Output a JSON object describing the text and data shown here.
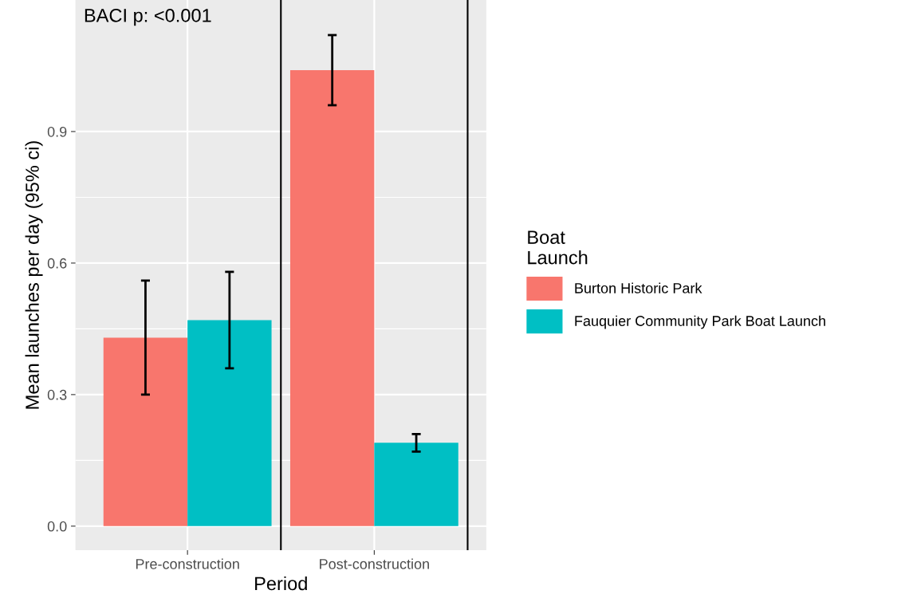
{
  "chart_data": {
    "type": "bar",
    "xlabel": "Period",
    "ylabel": "Mean launches per day (95% ci)",
    "legend_title": "Boat\nLaunch",
    "categories": [
      "Pre-construction",
      "Post-construction"
    ],
    "series": [
      {
        "name": "Burton Historic Park",
        "color": "#f8766d",
        "values": [
          0.43,
          1.04
        ],
        "errors": [
          [
            0.3,
            0.56
          ],
          [
            0.96,
            1.12
          ]
        ]
      },
      {
        "name": "Fauquier Community Park Boat Launch",
        "color": "#00bfc4",
        "values": [
          0.47,
          0.19
        ],
        "errors": [
          [
            0.36,
            0.58
          ],
          [
            0.17,
            0.21
          ]
        ]
      }
    ],
    "ylim": [
      -0.055,
      1.2
    ],
    "yticks": [
      {
        "value": 0,
        "label": "0.0"
      },
      0.3,
      0.6,
      0.9
    ],
    "annotations": [
      "BACI p: <0.001"
    ],
    "grid": true,
    "legend": "right"
  }
}
